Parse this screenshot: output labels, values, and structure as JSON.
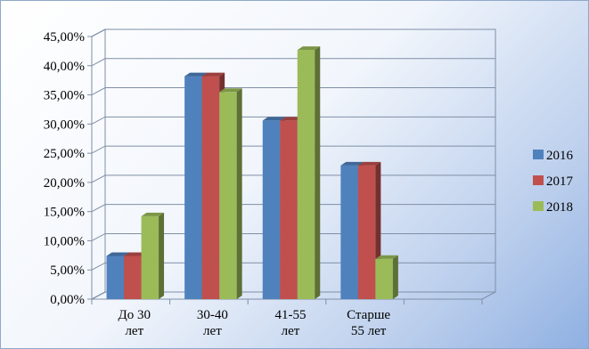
{
  "chart_data": {
    "type": "bar",
    "categories": [
      [
        "До 30",
        "лет"
      ],
      [
        "30-40",
        "лет"
      ],
      [
        "41-55",
        "лет"
      ],
      [
        "Старше",
        "55 лет"
      ],
      [
        "",
        ""
      ]
    ],
    "series": [
      {
        "name": "2016",
        "color": "#4f81bd",
        "values": [
          7.4,
          38.2,
          30.6,
          22.9,
          null
        ]
      },
      {
        "name": "2017",
        "color": "#c0504d",
        "values": [
          7.4,
          38.2,
          30.6,
          22.9,
          null
        ]
      },
      {
        "name": "2018",
        "color": "#9bbb59",
        "values": [
          14.2,
          35.5,
          42.7,
          6.9,
          null
        ]
      }
    ],
    "ylim": [
      0,
      45
    ],
    "yticks": [
      "0,00%",
      "5,00%",
      "10,00%",
      "15,00%",
      "20,00%",
      "25,00%",
      "30,00%",
      "35,00%",
      "40,00%",
      "45,00%"
    ],
    "grid": true,
    "legend_position": "right",
    "three_d": true
  }
}
